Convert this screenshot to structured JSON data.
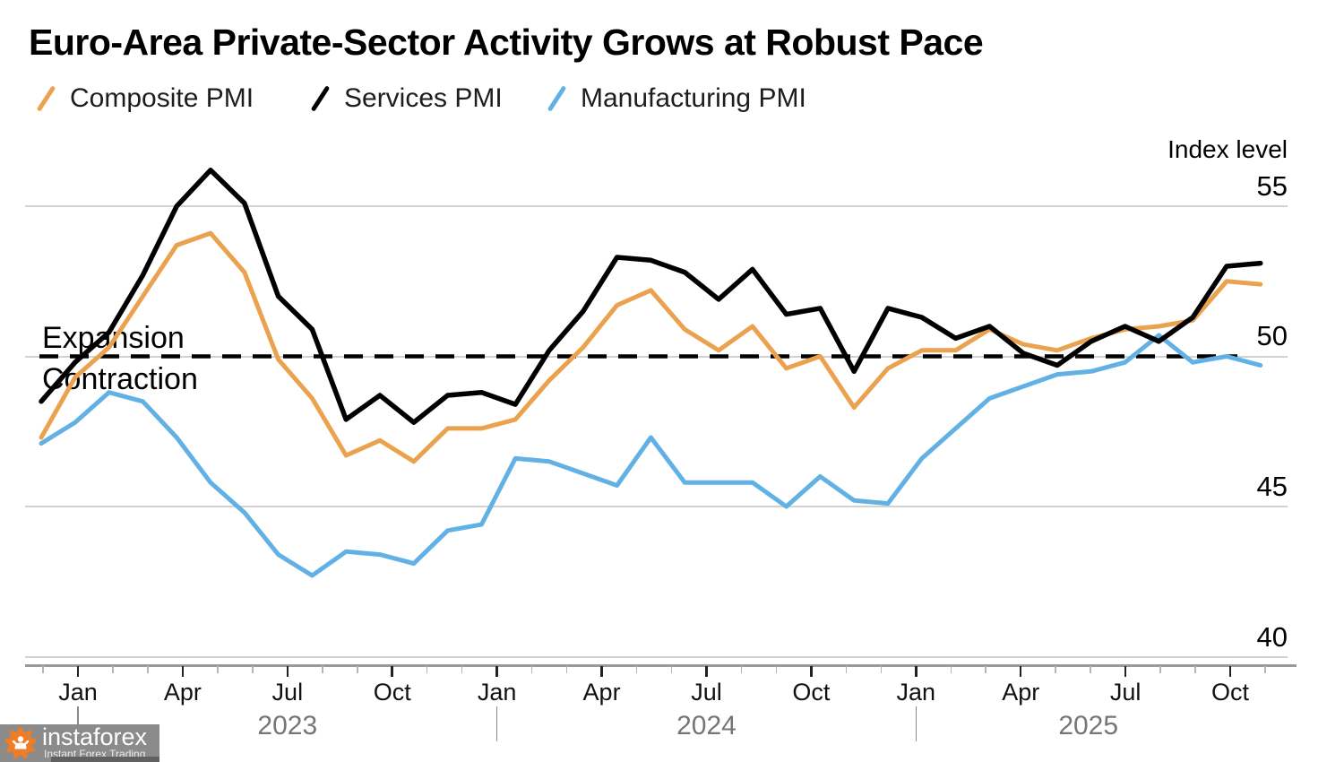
{
  "title": "Euro-Area Private-Sector Activity Grows at Robust Pace",
  "legend": {
    "items": [
      {
        "label": "Composite PMI",
        "color": "#EBA24E"
      },
      {
        "label": "Services PMI",
        "color": "#000000"
      },
      {
        "label": "Manufacturing PMI",
        "color": "#62B1E5"
      }
    ]
  },
  "annotations": {
    "expansion": "Expansion",
    "contraction": "Contraction",
    "threshold_value": 50
  },
  "axis": {
    "right_title": "Index level",
    "y_ticks": [
      "55",
      "50",
      "45",
      "40"
    ],
    "x_tick_labels": [
      "Jan",
      "Apr",
      "Jul",
      "Oct",
      "Jan",
      "Apr",
      "Jul",
      "Oct",
      "Jan",
      "Apr",
      "Jul",
      "Oct"
    ],
    "year_labels": [
      "2023",
      "2024",
      "2025"
    ]
  },
  "watermark": {
    "brand": "instaforex",
    "tagline": "Instant Forex Trading",
    "gear_color": "#F07D26"
  },
  "colors": {
    "composite": "#EBA24E",
    "services": "#000000",
    "manufacturing": "#62B1E5",
    "gridline": "#d2d2d2",
    "dashed_threshold": "#000000",
    "axis_line": "#9a9a9a",
    "year_label": "#757575"
  },
  "chart_data": {
    "type": "line",
    "title": "Euro-Area Private-Sector Activity Grows at Robust Pace",
    "ylabel": "Index level",
    "ylim": [
      39.5,
      57.5
    ],
    "y_gridlines": [
      55,
      50,
      45,
      40
    ],
    "threshold": {
      "value": 50,
      "style": "dashed",
      "labels": [
        "Expansion",
        "Contraction"
      ]
    },
    "legend_position": "top",
    "x": [
      "Nov 2022",
      "Dec 2022",
      "Jan 2023",
      "Feb 2023",
      "Mar 2023",
      "Apr 2023",
      "May 2023",
      "Jun 2023",
      "Jul 2023",
      "Aug 2023",
      "Sep 2023",
      "Oct 2023",
      "Nov 2023",
      "Dec 2023",
      "Jan 2024",
      "Feb 2024",
      "Mar 2024",
      "Apr 2024",
      "May 2024",
      "Jun 2024",
      "Jul 2024",
      "Aug 2024",
      "Sep 2024",
      "Oct 2024",
      "Nov 2024",
      "Dec 2024",
      "Jan 2025",
      "Feb 2025",
      "Mar 2025",
      "Apr 2025",
      "May 2025",
      "Jun 2025",
      "Jul 2025",
      "Aug 2025",
      "Sep 2025",
      "Oct 2025",
      "Nov 2025"
    ],
    "series": [
      {
        "name": "Composite PMI",
        "color": "#EBA24E",
        "width": 5,
        "values": [
          47.3,
          49.3,
          50.3,
          52.0,
          53.7,
          54.1,
          52.8,
          49.9,
          48.6,
          46.7,
          47.2,
          46.5,
          47.6,
          47.6,
          47.9,
          49.2,
          50.3,
          51.7,
          52.2,
          50.9,
          50.2,
          51.0,
          49.6,
          50.0,
          48.3,
          49.6,
          50.2,
          50.2,
          50.9,
          50.4,
          50.2,
          50.6,
          50.9,
          51.0,
          51.2,
          52.5,
          52.4
        ]
      },
      {
        "name": "Manufacturing PMI",
        "color": "#62B1E5",
        "width": 5,
        "values": [
          47.1,
          47.8,
          48.8,
          48.5,
          47.3,
          45.8,
          44.8,
          43.4,
          42.7,
          43.5,
          43.4,
          43.1,
          44.2,
          44.4,
          46.6,
          46.5,
          46.1,
          45.7,
          47.3,
          45.8,
          45.8,
          45.8,
          45.0,
          46.0,
          45.2,
          45.1,
          46.6,
          47.6,
          48.6,
          49.0,
          49.4,
          49.5,
          49.8,
          50.7,
          49.8,
          50.0,
          49.7
        ]
      },
      {
        "name": "Services PMI",
        "color": "#000000",
        "width": 5.5,
        "values": [
          48.5,
          49.8,
          50.8,
          52.7,
          55.0,
          56.2,
          55.1,
          52.0,
          50.9,
          47.9,
          48.7,
          47.8,
          48.7,
          48.8,
          48.4,
          50.2,
          51.5,
          53.3,
          53.2,
          52.8,
          51.9,
          52.9,
          51.4,
          51.6,
          49.5,
          51.6,
          51.3,
          50.6,
          51.0,
          50.1,
          49.7,
          50.5,
          51.0,
          50.5,
          51.3,
          53.0,
          53.1
        ]
      }
    ]
  }
}
